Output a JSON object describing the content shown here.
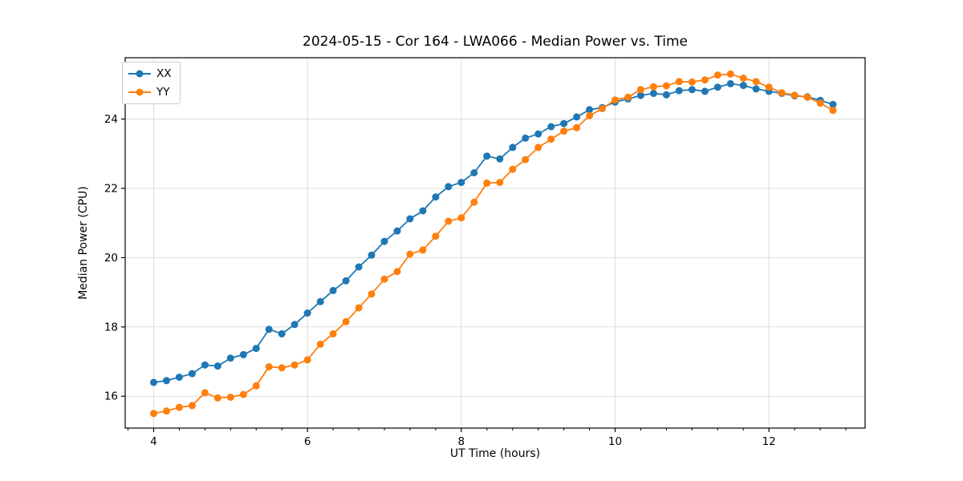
{
  "chart_data": {
    "type": "line",
    "title": "2024-05-15 - Cor 164 - LWA066 - Median Power vs. Time",
    "xlabel": "UT Time (hours)",
    "ylabel": "Median Power (CPU)",
    "xlim": [
      3.63,
      13.25
    ],
    "ylim": [
      15.08,
      25.77
    ],
    "x_major_ticks": [
      4,
      6,
      8,
      10,
      12
    ],
    "y_major_ticks": [
      16,
      18,
      20,
      22,
      24
    ],
    "x_minor_step": 0.3333,
    "grid": true,
    "grid_color": "#dcdcdc",
    "axis_color": "#000000",
    "legend_position": "upper left",
    "marker": "o",
    "x": [
      4.0,
      4.167,
      4.333,
      4.5,
      4.667,
      4.833,
      5.0,
      5.167,
      5.333,
      5.5,
      5.667,
      5.833,
      6.0,
      6.167,
      6.333,
      6.5,
      6.667,
      6.833,
      7.0,
      7.167,
      7.333,
      7.5,
      7.667,
      7.833,
      8.0,
      8.167,
      8.333,
      8.5,
      8.667,
      8.833,
      9.0,
      9.167,
      9.333,
      9.5,
      9.667,
      9.833,
      10.0,
      10.167,
      10.333,
      10.5,
      10.667,
      10.833,
      11.0,
      11.167,
      11.333,
      11.5,
      11.667,
      11.833,
      12.0,
      12.167,
      12.333,
      12.5,
      12.667,
      12.833
    ],
    "series": [
      {
        "name": "XX",
        "color": "#1f77b4",
        "values": [
          16.4,
          16.45,
          16.55,
          16.65,
          16.9,
          16.87,
          17.1,
          17.2,
          17.38,
          17.93,
          17.8,
          18.07,
          18.4,
          18.73,
          19.05,
          19.33,
          19.73,
          20.07,
          20.47,
          20.77,
          21.12,
          21.35,
          21.75,
          22.05,
          22.17,
          22.45,
          22.93,
          22.85,
          23.18,
          23.45,
          23.57,
          23.78,
          23.87,
          24.06,
          24.27,
          24.33,
          24.49,
          24.58,
          24.68,
          24.74,
          24.7,
          24.82,
          24.85,
          24.8,
          24.92,
          25.02,
          24.97,
          24.87,
          24.8,
          24.74,
          24.67,
          24.64,
          24.54,
          24.42
        ]
      },
      {
        "name": "YY",
        "color": "#ff7f0e",
        "values": [
          15.5,
          15.57,
          15.68,
          15.73,
          16.1,
          15.95,
          15.97,
          16.05,
          16.3,
          16.85,
          16.82,
          16.9,
          17.05,
          17.5,
          17.8,
          18.15,
          18.55,
          18.95,
          19.38,
          19.6,
          20.1,
          20.22,
          20.62,
          21.05,
          21.15,
          21.6,
          22.15,
          22.17,
          22.55,
          22.83,
          23.18,
          23.42,
          23.65,
          23.75,
          24.1,
          24.3,
          24.55,
          24.63,
          24.85,
          24.93,
          24.96,
          25.08,
          25.07,
          25.13,
          25.27,
          25.3,
          25.18,
          25.08,
          24.92,
          24.76,
          24.69,
          24.63,
          24.46,
          24.25
        ]
      }
    ]
  }
}
